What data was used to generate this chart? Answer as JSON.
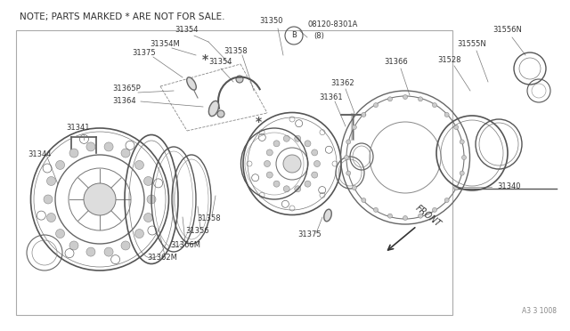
{
  "bg_color": "#ffffff",
  "line_color": "#555555",
  "text_color": "#333333",
  "note_text": "NOTE; PARTS MARKED * ARE NOT FOR SALE.",
  "diagram_ref": "A3 3 1008",
  "front_label": "FRONT",
  "title_fontsize": 7.5,
  "label_fontsize": 6.0,
  "small_fontsize": 5.5,
  "figsize": [
    6.4,
    3.72
  ],
  "dpi": 100
}
